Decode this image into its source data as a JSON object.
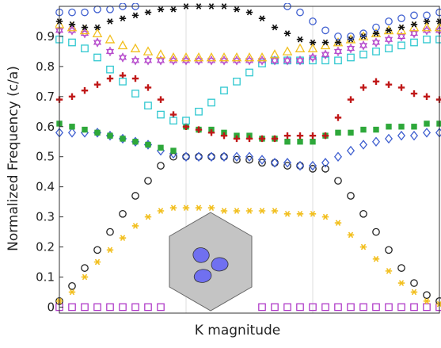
{
  "chart_data": {
    "type": "scatter",
    "x_label": "K magnitude",
    "y_label": "Normalized Frequency (c/a)",
    "x": [
      0,
      0.1,
      0.2,
      0.3,
      0.4,
      0.5,
      0.6,
      0.7,
      0.8,
      0.9,
      1.0,
      1.1,
      1.2,
      1.3,
      1.4,
      1.5,
      1.6,
      1.7,
      1.8,
      1.9,
      2.0,
      2.1,
      2.2,
      2.3,
      2.4,
      2.5,
      2.6,
      2.7,
      2.8,
      2.9,
      3.0
    ],
    "xlim": [
      0,
      3
    ],
    "xgrid": [
      1,
      2
    ],
    "ylim": [
      -0.02,
      1.0
    ],
    "yticks": [
      0,
      0.1,
      0.2,
      0.3,
      0.4,
      0.5,
      0.6,
      0.7,
      0.8,
      0.9
    ],
    "series": [
      {
        "marker": "square",
        "color": "#b03cc8",
        "values": [
          0,
          0,
          0,
          0,
          0,
          0,
          0,
          0,
          0,
          null,
          null,
          null,
          null,
          null,
          null,
          null,
          0,
          0,
          0,
          0,
          0,
          0,
          0,
          0,
          0,
          0,
          0,
          0,
          0,
          0,
          0
        ]
      },
      {
        "marker": "circle",
        "color": "#222222",
        "values": [
          0.02,
          0.07,
          0.13,
          0.19,
          0.25,
          0.31,
          0.37,
          0.42,
          0.47,
          0.5,
          0.5,
          0.5,
          0.5,
          0.5,
          0.49,
          0.49,
          0.48,
          0.48,
          0.47,
          0.47,
          0.46,
          0.46,
          0.42,
          0.37,
          0.31,
          0.25,
          0.19,
          0.13,
          0.08,
          0.04,
          0.02
        ]
      },
      {
        "marker": "asterisk",
        "color": "#f2bf1e",
        "values": [
          0.02,
          0.05,
          0.1,
          0.15,
          0.19,
          0.23,
          0.27,
          0.3,
          0.32,
          0.33,
          0.33,
          0.33,
          0.33,
          0.32,
          0.32,
          0.32,
          0.32,
          0.32,
          0.31,
          0.31,
          0.31,
          0.3,
          0.28,
          0.24,
          0.2,
          0.16,
          0.12,
          0.08,
          0.05,
          0.02,
          0.01
        ]
      },
      {
        "marker": "diamond",
        "color": "#4060d0",
        "values": [
          0.58,
          0.58,
          0.58,
          0.58,
          0.57,
          0.56,
          0.55,
          0.54,
          0.52,
          0.51,
          0.5,
          0.5,
          0.5,
          0.5,
          0.5,
          0.5,
          0.49,
          0.48,
          0.48,
          0.47,
          0.47,
          0.48,
          0.5,
          0.52,
          0.54,
          0.55,
          0.56,
          0.57,
          0.57,
          0.58,
          0.58
        ]
      },
      {
        "marker": "filled-square",
        "color": "#2ea83a",
        "values": [
          0.61,
          0.6,
          0.59,
          0.58,
          0.57,
          0.56,
          0.55,
          0.54,
          0.53,
          0.52,
          0.6,
          0.59,
          0.59,
          0.58,
          0.57,
          0.57,
          0.56,
          0.56,
          0.55,
          0.55,
          0.55,
          0.57,
          0.58,
          0.58,
          0.59,
          0.59,
          0.6,
          0.6,
          0.6,
          0.61,
          0.61
        ]
      },
      {
        "marker": "plus",
        "color": "#c01818",
        "values": [
          0.69,
          0.7,
          0.72,
          0.74,
          0.76,
          0.77,
          0.76,
          0.73,
          0.69,
          0.64,
          0.6,
          0.59,
          0.58,
          0.57,
          0.56,
          0.56,
          0.56,
          0.56,
          0.57,
          0.57,
          0.57,
          0.57,
          0.63,
          0.69,
          0.73,
          0.75,
          0.74,
          0.73,
          0.71,
          0.7,
          0.69
        ]
      },
      {
        "marker": "square",
        "color": "#30c8d0",
        "values": [
          0.89,
          0.88,
          0.86,
          0.83,
          0.79,
          0.75,
          0.71,
          0.67,
          0.64,
          0.62,
          0.62,
          0.65,
          0.68,
          0.72,
          0.75,
          0.78,
          0.81,
          0.82,
          0.82,
          0.82,
          0.82,
          0.82,
          0.82,
          0.83,
          0.84,
          0.85,
          0.86,
          0.87,
          0.88,
          0.89,
          0.89
        ]
      },
      {
        "marker": "star",
        "color": "#b03cc8",
        "values": [
          0.92,
          0.92,
          0.91,
          0.88,
          0.85,
          0.83,
          0.82,
          0.82,
          0.82,
          0.82,
          0.82,
          0.82,
          0.82,
          0.82,
          0.82,
          0.82,
          0.82,
          0.82,
          0.82,
          0.82,
          0.83,
          0.84,
          0.85,
          0.86,
          0.87,
          0.88,
          0.89,
          0.9,
          0.91,
          0.92,
          0.92
        ]
      },
      {
        "marker": "triangle",
        "color": "#f2bf1e",
        "values": [
          0.94,
          0.93,
          0.92,
          0.91,
          0.89,
          0.87,
          0.86,
          0.85,
          0.84,
          0.83,
          0.83,
          0.83,
          0.83,
          0.83,
          0.83,
          0.83,
          0.83,
          0.84,
          0.85,
          0.86,
          0.86,
          0.87,
          0.88,
          0.89,
          0.9,
          0.91,
          0.92,
          0.92,
          0.93,
          0.93,
          0.93
        ]
      },
      {
        "marker": "asterisk",
        "color": "#111111",
        "values": [
          0.95,
          0.94,
          0.93,
          0.93,
          0.95,
          0.96,
          0.97,
          0.98,
          0.99,
          0.99,
          1.0,
          1.0,
          1.0,
          1.0,
          0.99,
          0.98,
          0.96,
          0.93,
          0.91,
          0.89,
          0.88,
          0.88,
          0.88,
          0.89,
          0.9,
          0.91,
          0.92,
          0.93,
          0.94,
          0.95,
          0.95
        ]
      },
      {
        "marker": "circle",
        "color": "#4060d0",
        "values": [
          0.98,
          0.98,
          0.98,
          0.99,
          0.99,
          1.0,
          1.0,
          null,
          null,
          null,
          null,
          null,
          null,
          null,
          null,
          null,
          null,
          null,
          1.0,
          0.98,
          0.95,
          0.92,
          0.9,
          0.9,
          0.91,
          0.93,
          0.95,
          0.96,
          0.97,
          0.97,
          0.98
        ]
      }
    ]
  }
}
